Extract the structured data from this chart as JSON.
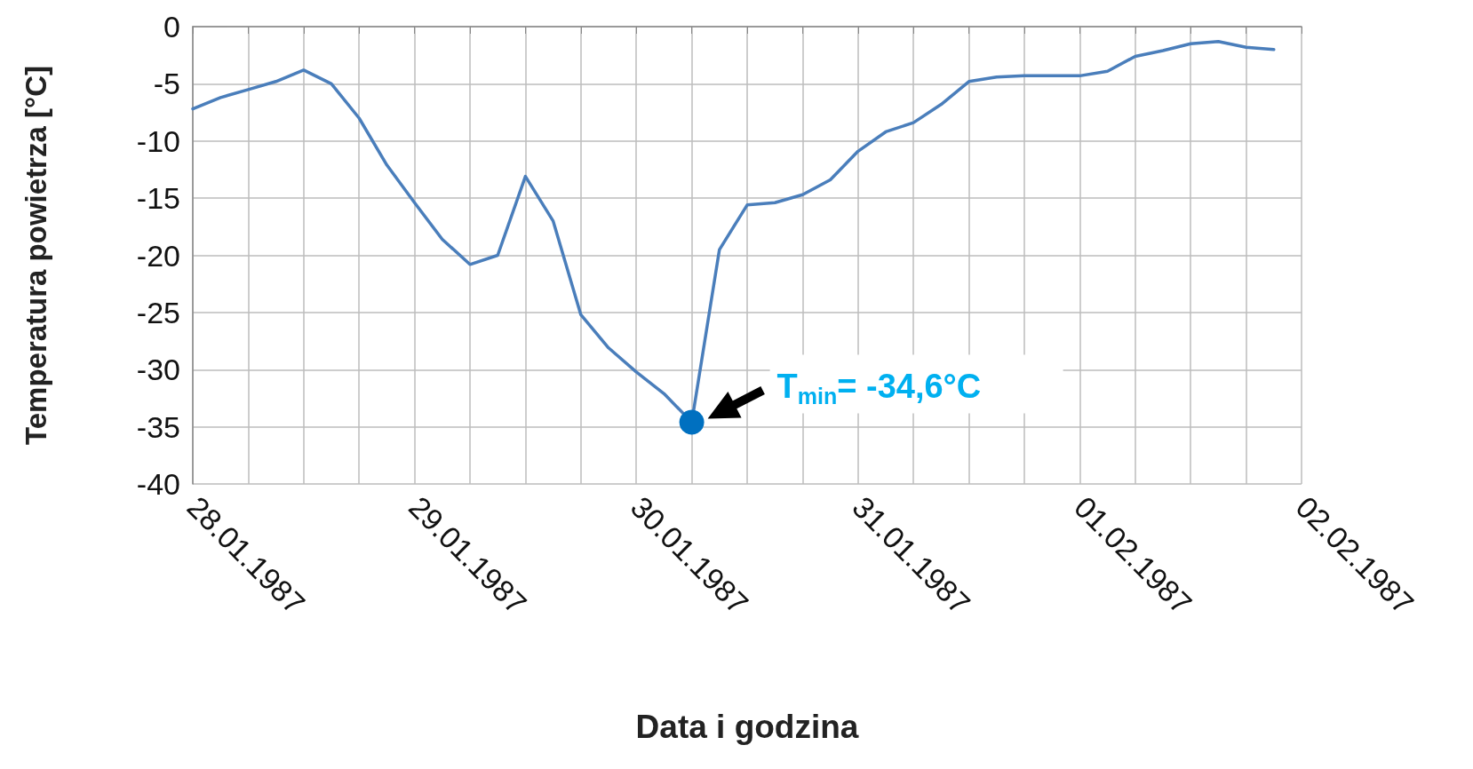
{
  "chart_data": {
    "type": "line",
    "xlabel": "Data i godzina",
    "ylabel": "Temperatura powietrza [°C]",
    "x": [
      "1987-01-28T00:00",
      "1987-01-28T03:00",
      "1987-01-28T06:00",
      "1987-01-28T09:00",
      "1987-01-28T12:00",
      "1987-01-28T15:00",
      "1987-01-28T18:00",
      "1987-01-28T21:00",
      "1987-01-29T00:00",
      "1987-01-29T03:00",
      "1987-01-29T06:00",
      "1987-01-29T09:00",
      "1987-01-29T12:00",
      "1987-01-29T15:00",
      "1987-01-29T18:00",
      "1987-01-29T21:00",
      "1987-01-30T00:00",
      "1987-01-30T03:00",
      "1987-01-30T06:00",
      "1987-01-30T09:00",
      "1987-01-30T12:00",
      "1987-01-30T15:00",
      "1987-01-30T18:00",
      "1987-01-30T21:00",
      "1987-01-31T00:00",
      "1987-01-31T03:00",
      "1987-01-31T06:00",
      "1987-01-31T09:00",
      "1987-01-31T12:00",
      "1987-01-31T15:00",
      "1987-01-31T18:00",
      "1987-01-31T21:00",
      "1987-02-01T00:00",
      "1987-02-01T03:00",
      "1987-02-01T06:00",
      "1987-02-01T09:00",
      "1987-02-01T12:00",
      "1987-02-01T15:00",
      "1987-02-01T18:00",
      "1987-02-01T21:00"
    ],
    "series": [
      {
        "color": "#4a7ebb",
        "values": [
          -7.2,
          -6.2,
          -5.5,
          -4.8,
          -3.8,
          -5.0,
          -8.0,
          -12.1,
          -15.4,
          -18.6,
          -20.8,
          -20.0,
          -13.1,
          -17.0,
          -25.2,
          -28.1,
          -30.2,
          -32.1,
          -34.6,
          -19.5,
          -15.6,
          -15.4,
          -14.7,
          -13.4,
          -10.9,
          -9.2,
          -8.4,
          -6.8,
          -4.8,
          -4.4,
          -4.3,
          -4.3,
          -4.3,
          -3.9,
          -2.6,
          -2.1,
          -1.5,
          -1.3,
          -1.8,
          -2.0
        ]
      }
    ],
    "xlim": [
      "1987-01-28",
      "1987-02-02"
    ],
    "xticks": [
      {
        "value": "1987-01-28",
        "label": "28.01.1987"
      },
      {
        "value": "1987-01-28T06:00",
        "label": null
      },
      {
        "value": "1987-01-28T12:00",
        "label": null
      },
      {
        "value": "1987-01-28T18:00",
        "label": null
      },
      {
        "value": "1987-01-29",
        "label": "29.01.1987"
      },
      {
        "value": "1987-01-29T06:00",
        "label": null
      },
      {
        "value": "1987-01-29T12:00",
        "label": null
      },
      {
        "value": "1987-01-29T18:00",
        "label": null
      },
      {
        "value": "1987-01-30",
        "label": "30.01.1987"
      },
      {
        "value": "1987-01-30T06:00",
        "label": null
      },
      {
        "value": "1987-01-30T12:00",
        "label": null
      },
      {
        "value": "1987-01-30T18:00",
        "label": null
      },
      {
        "value": "1987-01-31",
        "label": "31.01.1987"
      },
      {
        "value": "1987-01-31T06:00",
        "label": null
      },
      {
        "value": "1987-01-31T12:00",
        "label": null
      },
      {
        "value": "1987-01-31T18:00",
        "label": null
      },
      {
        "value": "1987-02-01",
        "label": "01.02.1987"
      },
      {
        "value": "1987-02-01T06:00",
        "label": null
      },
      {
        "value": "1987-02-01T12:00",
        "label": null
      },
      {
        "value": "1987-02-01T18:00",
        "label": null
      },
      {
        "value": "1987-02-02",
        "label": "02.02.1987"
      }
    ],
    "ylim": [
      -40,
      0
    ],
    "yticks": [
      0,
      -5,
      -10,
      -15,
      -20,
      -25,
      -30,
      -35,
      -40
    ],
    "grid": true,
    "marker": "none",
    "line_style": "solid",
    "annotations": [
      {
        "text": "T$_{min}$= -34,6°C",
        "x": "1987-01-30T06:00",
        "y": -34.6
      }
    ]
  }
}
